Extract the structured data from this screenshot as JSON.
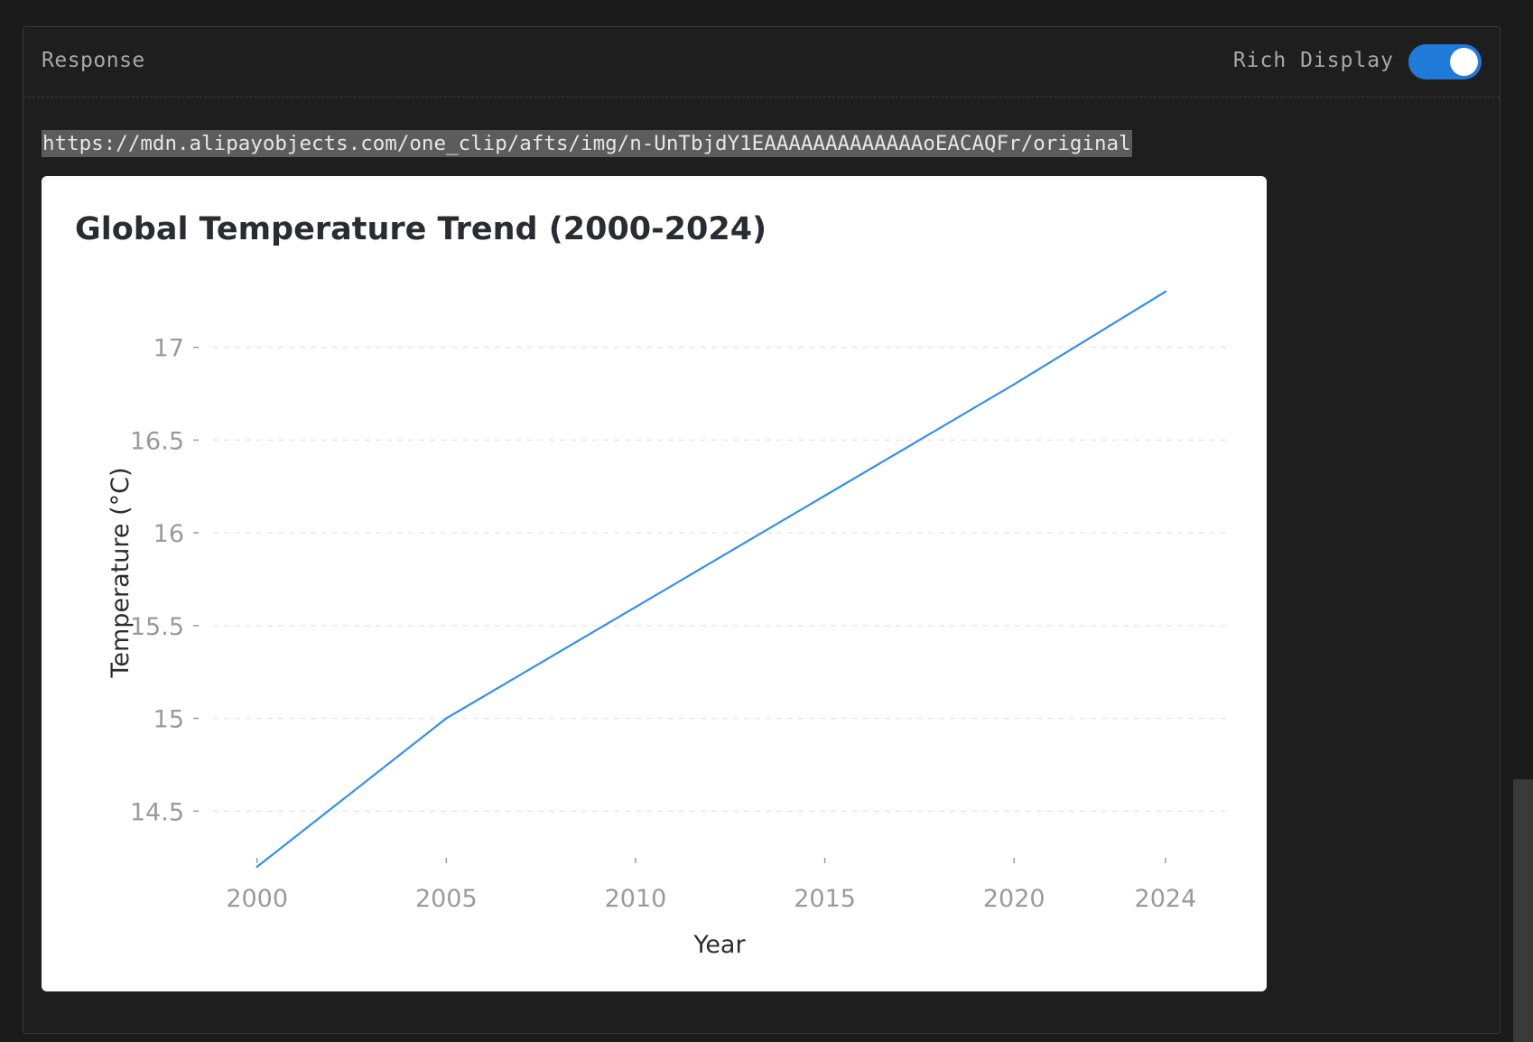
{
  "panel": {
    "title": "Response",
    "toggle_label": "Rich Display",
    "toggle_on": true
  },
  "url": "https://mdn.alipayobjects.com/one_clip/afts/img/n-UnTbjdY1EAAAAAAAAAAAAAoEACAQFr/original",
  "colors": {
    "accent": "#1f7ad8",
    "line": "#3390ec"
  },
  "chart_data": {
    "type": "line",
    "title": "Global Temperature Trend (2000-2024)",
    "xlabel": "Year",
    "ylabel": "Temperature (°C)",
    "x": [
      2000,
      2005,
      2010,
      2015,
      2020,
      2024
    ],
    "values": [
      14.2,
      15.0,
      15.6,
      16.2,
      16.8,
      17.3
    ],
    "xticks": [
      2000,
      2005,
      2010,
      2015,
      2020,
      2024
    ],
    "yticks": [
      14.5,
      15,
      15.5,
      16,
      16.5,
      17
    ],
    "xlim": [
      1998.6,
      2025.6
    ],
    "ylim": [
      14.2,
      17.3
    ],
    "grid": "horizontal dashed",
    "legend": "none"
  }
}
